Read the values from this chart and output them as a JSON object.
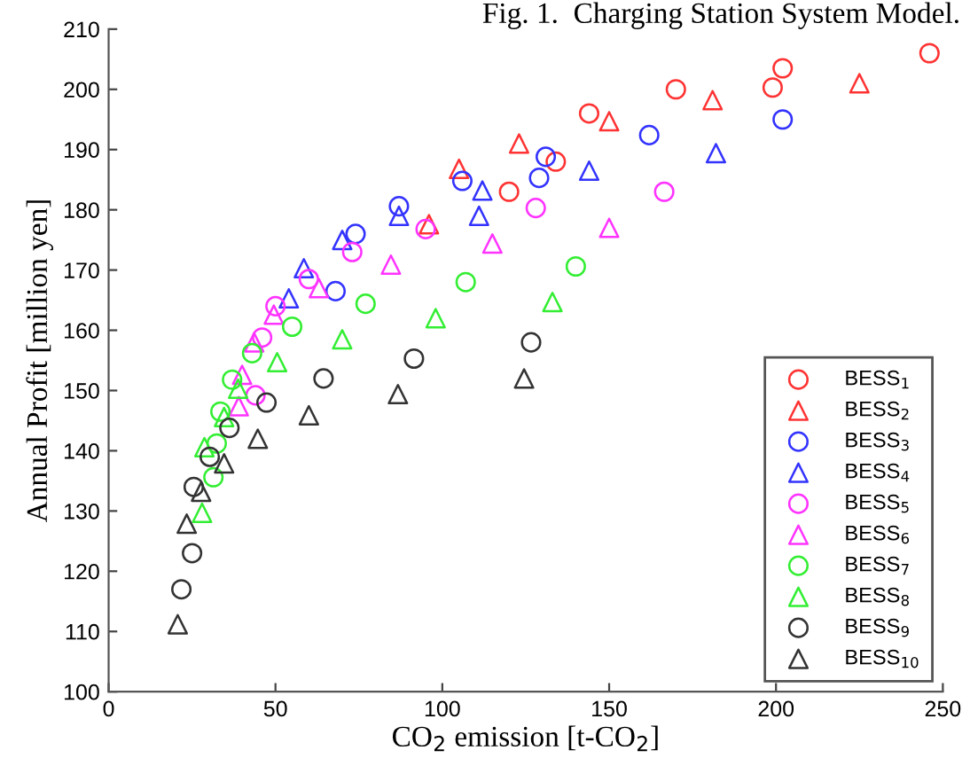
{
  "chart_data": {
    "type": "scatter",
    "xlabel": "CO$_{2}$ emission [t-CO$_{2}$]",
    "ylabel": "Annual Profit [million yen]",
    "annotations": [
      "Fig. 1.  Charging Station System Model."
    ],
    "xlim": [
      0,
      250
    ],
    "ylim": [
      100,
      210
    ],
    "xticks": [
      0,
      50,
      100,
      150,
      200,
      250
    ],
    "yticks": [
      100,
      110,
      120,
      130,
      140,
      150,
      160,
      170,
      180,
      190,
      200,
      210
    ],
    "grid": false,
    "legend": "bottom right",
    "series": [
      {
        "name": "BESS$_{1}$",
        "color": "#ff3333",
        "marker": "circle",
        "x": [
          120,
          134,
          144,
          170,
          199,
          202,
          246
        ],
        "values": [
          183,
          188,
          196,
          200,
          200.3,
          203.5,
          206
        ]
      },
      {
        "name": "BESS$_{2}$",
        "color": "#ff3333",
        "marker": "triangle",
        "x": [
          96,
          105,
          123,
          150,
          181,
          225
        ],
        "values": [
          177.6,
          186.8,
          191,
          194.7,
          198.2,
          201
        ]
      },
      {
        "name": "BESS$_{3}$",
        "color": "#3333ff",
        "marker": "circle",
        "x": [
          68,
          74,
          87,
          106,
          129,
          131,
          162,
          202
        ],
        "values": [
          166.5,
          176,
          180.6,
          184.8,
          185.3,
          188.8,
          192.4,
          195
        ]
      },
      {
        "name": "BESS$_{4}$",
        "color": "#3333ff",
        "marker": "triangle",
        "x": [
          54,
          58.5,
          70,
          87,
          111,
          112,
          144,
          182
        ],
        "values": [
          165.3,
          170.3,
          175,
          179,
          179,
          183.2,
          186.5,
          189.4
        ]
      },
      {
        "name": "BESS$_{5}$",
        "color": "#ff33ff",
        "marker": "circle",
        "x": [
          44,
          46,
          50,
          60,
          73,
          95,
          128,
          166.5
        ],
        "values": [
          149.2,
          158.8,
          164,
          168.5,
          173,
          176.8,
          180.3,
          183
        ]
      },
      {
        "name": "BESS$_{6}$",
        "color": "#ff33ff",
        "marker": "triangle",
        "x": [
          39,
          40,
          43.6,
          49.5,
          63,
          84.6,
          115,
          150
        ],
        "values": [
          147.4,
          152.6,
          158,
          162.6,
          167,
          170.9,
          174.4,
          177
        ]
      },
      {
        "name": "BESS$_{7}$",
        "color": "#33ee33",
        "marker": "circle",
        "x": [
          31.4,
          32.4,
          33.5,
          37,
          43,
          55,
          77,
          107,
          140
        ],
        "values": [
          135.6,
          141.2,
          146.5,
          151.8,
          156.2,
          160.6,
          164.4,
          168,
          170.6
        ]
      },
      {
        "name": "BESS$_{8}$",
        "color": "#33ee33",
        "marker": "triangle",
        "x": [
          28,
          28.7,
          34.6,
          38.8,
          50.5,
          70,
          98,
          133
        ],
        "values": [
          129.7,
          140.6,
          145.6,
          150.3,
          154.7,
          158.5,
          162,
          164.7
        ]
      },
      {
        "name": "BESS$_{9}$",
        "color": "#333333",
        "marker": "circle",
        "x": [
          21.8,
          25,
          25.5,
          30.3,
          36.2,
          47.3,
          64.4,
          91.5,
          126.6
        ],
        "values": [
          117,
          123,
          134,
          139,
          143.8,
          148,
          152,
          155.3,
          158
        ]
      },
      {
        "name": "BESS$_{10}$",
        "color": "#333333",
        "marker": "triangle",
        "x": [
          20.7,
          23.4,
          27.7,
          34.6,
          44.7,
          60,
          86.7,
          124.5
        ],
        "values": [
          111.2,
          127.9,
          133.2,
          137.9,
          142,
          145.9,
          149.4,
          152
        ]
      }
    ]
  }
}
